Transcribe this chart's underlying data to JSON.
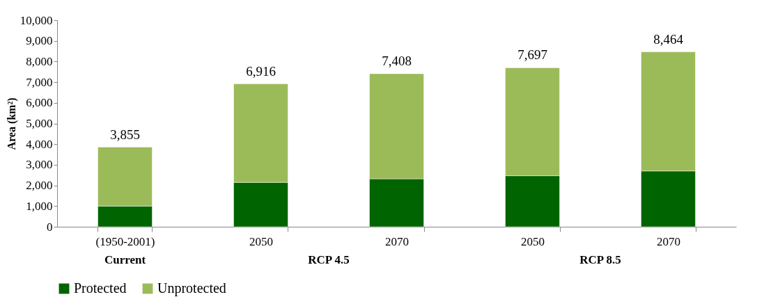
{
  "chart_data": {
    "type": "bar",
    "stacked": true,
    "ylabel": "Area (km²)",
    "categories": [
      "(1950-2001)",
      "2050",
      "2070",
      "2050",
      "2070"
    ],
    "series": [
      {
        "name": "Protected",
        "color": "#006400",
        "values": [
          1000,
          2150,
          2320,
          2470,
          2700
        ]
      },
      {
        "name": "Unprotected",
        "color": "#9bbb59",
        "values": [
          2855,
          4766,
          5088,
          5227,
          5764
        ]
      }
    ],
    "totals": [
      "3,855",
      "6,916",
      "7,408",
      "7,697",
      "8,464"
    ],
    "ylim": [
      0,
      10000
    ],
    "yticks": [
      0,
      {
        "value": 1000,
        "label": "1,000"
      },
      {
        "value": 2000,
        "label": "2,000"
      },
      {
        "value": 3000,
        "label": "3,000"
      },
      {
        "value": 4000,
        "label": "4,000"
      },
      {
        "value": 5000,
        "label": "5,000"
      },
      {
        "value": 6000,
        "label": "6,000"
      },
      {
        "value": 7000,
        "label": "7,000"
      },
      {
        "value": 8000,
        "label": "8,000"
      },
      {
        "value": 9000,
        "label": "9,000"
      },
      {
        "value": 10000,
        "label": "10,000"
      }
    ],
    "annotations": [
      "Current",
      "RCP 4.5",
      "RCP 8.5"
    ],
    "legend": "bottom",
    "grid": false
  }
}
